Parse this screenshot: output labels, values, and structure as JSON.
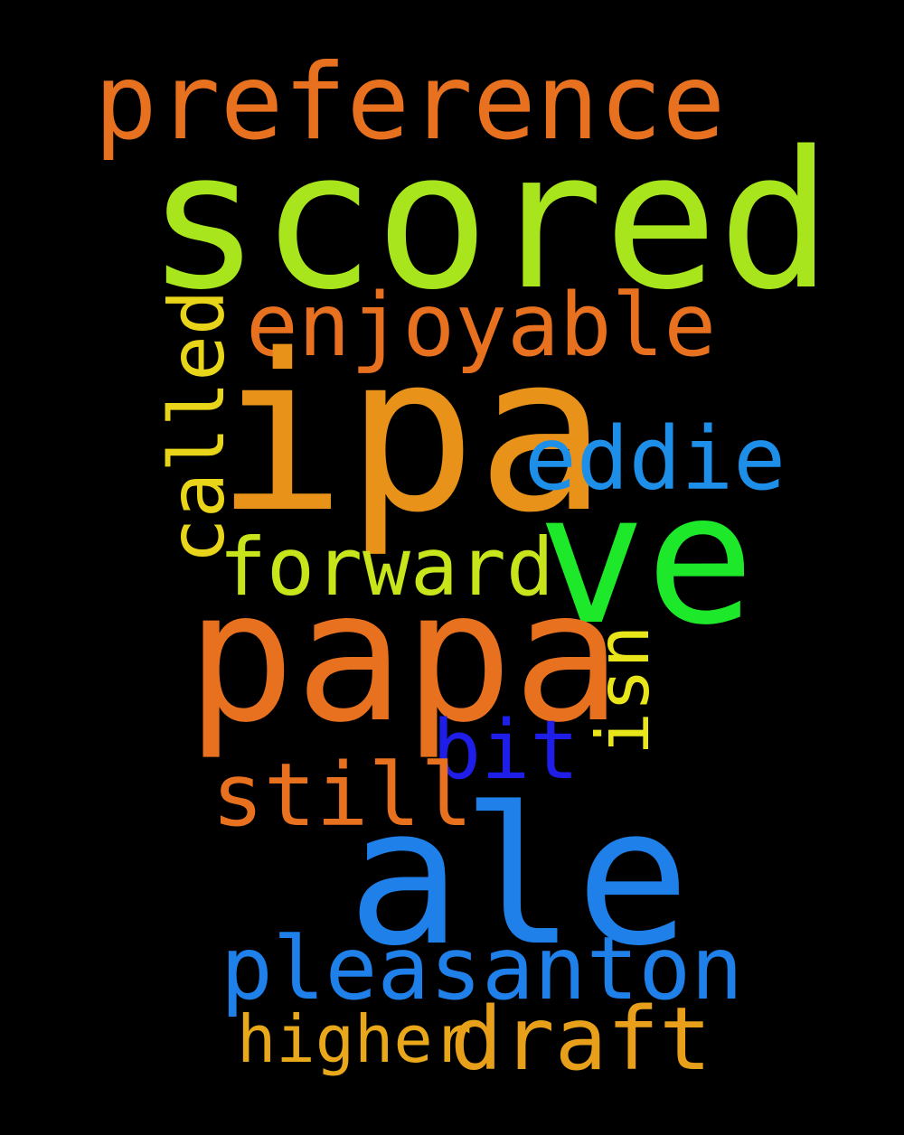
{
  "cloud": {
    "background": "#000000",
    "words": [
      {
        "id": "preference",
        "text": "preference",
        "color": "#e8711f"
      },
      {
        "id": "scored",
        "text": "scored",
        "color": "#a8e51c"
      },
      {
        "id": "enjoyable",
        "text": "enjoyable",
        "color": "#e8711f"
      },
      {
        "id": "ipa",
        "text": "ipa",
        "color": "#e8921a"
      },
      {
        "id": "eddie",
        "text": "eddie",
        "color": "#1e8fe8"
      },
      {
        "id": "called",
        "text": "called",
        "color": "#e8d51a"
      },
      {
        "id": "ve",
        "text": "ve",
        "color": "#1ee82a"
      },
      {
        "id": "forward",
        "text": "forward",
        "color": "#c8e51c"
      },
      {
        "id": "papa",
        "text": "papa",
        "color": "#e8711f"
      },
      {
        "id": "isn",
        "text": "isn",
        "color": "#e8e51a"
      },
      {
        "id": "bit",
        "text": "bit",
        "color": "#1e1ee8"
      },
      {
        "id": "still",
        "text": "still",
        "color": "#e8711f"
      },
      {
        "id": "ale",
        "text": "ale",
        "color": "#1e80e8"
      },
      {
        "id": "pleasanton",
        "text": "pleasanton",
        "color": "#1e80e8"
      },
      {
        "id": "higher",
        "text": "higher",
        "color": "#e8a81a"
      },
      {
        "id": "draft",
        "text": "draft",
        "color": "#e8a01a"
      }
    ]
  }
}
